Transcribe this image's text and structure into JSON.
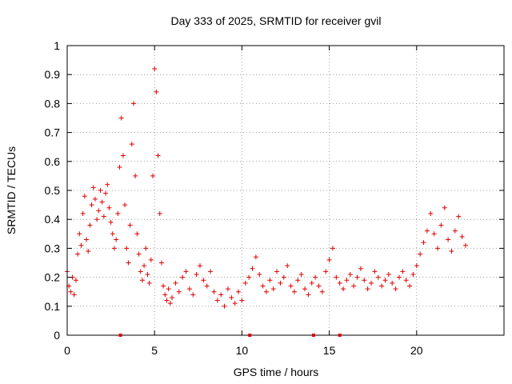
{
  "chart_data": {
    "type": "scatter",
    "title": "Day 333 of 2025, SRMTID for receiver gvil",
    "xlabel": "GPS time / hours",
    "ylabel": "SRMTID / TECUs",
    "xlim": [
      0,
      25
    ],
    "ylim": [
      0,
      1
    ],
    "x_ticks": [
      0,
      5,
      10,
      15,
      20
    ],
    "x_tick_labels": [
      "0",
      "5",
      "10",
      "15",
      "20"
    ],
    "y_ticks": [
      0,
      0.1,
      0.2,
      0.3,
      0.4,
      0.5,
      0.6,
      0.7,
      0.8,
      0.9,
      1
    ],
    "y_tick_labels": [
      "0",
      "0.1",
      "0.2",
      "0.3",
      "0.4",
      "0.5",
      "0.6",
      "0.7",
      "0.8",
      "0.9",
      "1"
    ],
    "grid": true,
    "marker": "+",
    "marker_color": "#e00000",
    "series": [
      {
        "name": "SRMTID",
        "x": [
          0.0,
          0.1,
          0.2,
          0.3,
          0.4,
          0.5,
          0.6,
          0.7,
          0.8,
          0.9,
          1.0,
          1.1,
          1.2,
          1.3,
          1.4,
          1.5,
          1.6,
          1.7,
          1.8,
          1.9,
          2.0,
          2.1,
          2.2,
          2.3,
          2.4,
          2.5,
          2.6,
          2.7,
          2.8,
          2.9,
          3.0,
          3.1,
          3.2,
          3.3,
          3.4,
          3.5,
          3.6,
          3.7,
          3.8,
          3.9,
          4.0,
          4.1,
          4.2,
          4.3,
          4.4,
          4.5,
          4.6,
          4.7,
          4.8,
          4.9,
          5.0,
          5.1,
          5.2,
          5.3,
          5.4,
          5.5,
          5.6,
          5.7,
          5.8,
          5.9,
          6.0,
          6.2,
          6.4,
          6.6,
          6.8,
          7.0,
          7.2,
          7.4,
          7.6,
          7.8,
          8.0,
          8.2,
          8.4,
          8.6,
          8.8,
          9.0,
          9.2,
          9.4,
          9.6,
          9.8,
          10.0,
          10.2,
          10.4,
          10.6,
          10.8,
          11.0,
          11.2,
          11.4,
          11.6,
          11.8,
          12.0,
          12.2,
          12.4,
          12.6,
          12.8,
          13.0,
          13.2,
          13.4,
          13.6,
          13.8,
          14.0,
          14.2,
          14.4,
          14.6,
          14.8,
          15.0,
          15.2,
          15.4,
          15.6,
          15.8,
          16.0,
          16.2,
          16.4,
          16.6,
          16.8,
          17.0,
          17.2,
          17.4,
          17.6,
          17.8,
          18.0,
          18.2,
          18.4,
          18.6,
          18.8,
          19.0,
          19.2,
          19.4,
          19.6,
          19.8,
          20.0,
          20.2,
          20.4,
          20.6,
          20.8,
          21.0,
          21.2,
          21.4,
          21.6,
          21.8,
          22.0,
          22.2,
          22.4,
          22.6,
          22.8
        ],
        "y": [
          0.22,
          0.17,
          0.15,
          0.2,
          0.14,
          0.19,
          0.28,
          0.35,
          0.31,
          0.42,
          0.48,
          0.33,
          0.29,
          0.38,
          0.45,
          0.51,
          0.47,
          0.4,
          0.43,
          0.5,
          0.46,
          0.41,
          0.49,
          0.52,
          0.44,
          0.39,
          0.35,
          0.3,
          0.33,
          0.42,
          0.58,
          0.75,
          0.62,
          0.45,
          0.3,
          0.25,
          0.38,
          0.66,
          0.8,
          0.55,
          0.35,
          0.28,
          0.22,
          0.19,
          0.24,
          0.3,
          0.21,
          0.18,
          0.26,
          0.55,
          0.92,
          0.84,
          0.62,
          0.42,
          0.25,
          0.17,
          0.14,
          0.12,
          0.16,
          0.11,
          0.13,
          0.18,
          0.15,
          0.2,
          0.22,
          0.16,
          0.14,
          0.21,
          0.24,
          0.19,
          0.17,
          0.22,
          0.15,
          0.12,
          0.14,
          0.1,
          0.16,
          0.13,
          0.11,
          0.15,
          0.12,
          0.18,
          0.2,
          0.23,
          0.27,
          0.21,
          0.17,
          0.15,
          0.19,
          0.16,
          0.22,
          0.18,
          0.2,
          0.24,
          0.17,
          0.15,
          0.19,
          0.21,
          0.16,
          0.14,
          0.18,
          0.2,
          0.17,
          0.15,
          0.22,
          0.26,
          0.3,
          0.2,
          0.18,
          0.16,
          0.19,
          0.21,
          0.17,
          0.2,
          0.23,
          0.19,
          0.16,
          0.18,
          0.22,
          0.2,
          0.17,
          0.19,
          0.21,
          0.18,
          0.16,
          0.2,
          0.22,
          0.19,
          0.17,
          0.21,
          0.24,
          0.28,
          0.32,
          0.36,
          0.42,
          0.35,
          0.3,
          0.38,
          0.44,
          0.33,
          0.29,
          0.36,
          0.41,
          0.34,
          0.31
        ]
      }
    ],
    "axis_markers_x": [
      3.05,
      10.45,
      14.1,
      15.6
    ]
  }
}
